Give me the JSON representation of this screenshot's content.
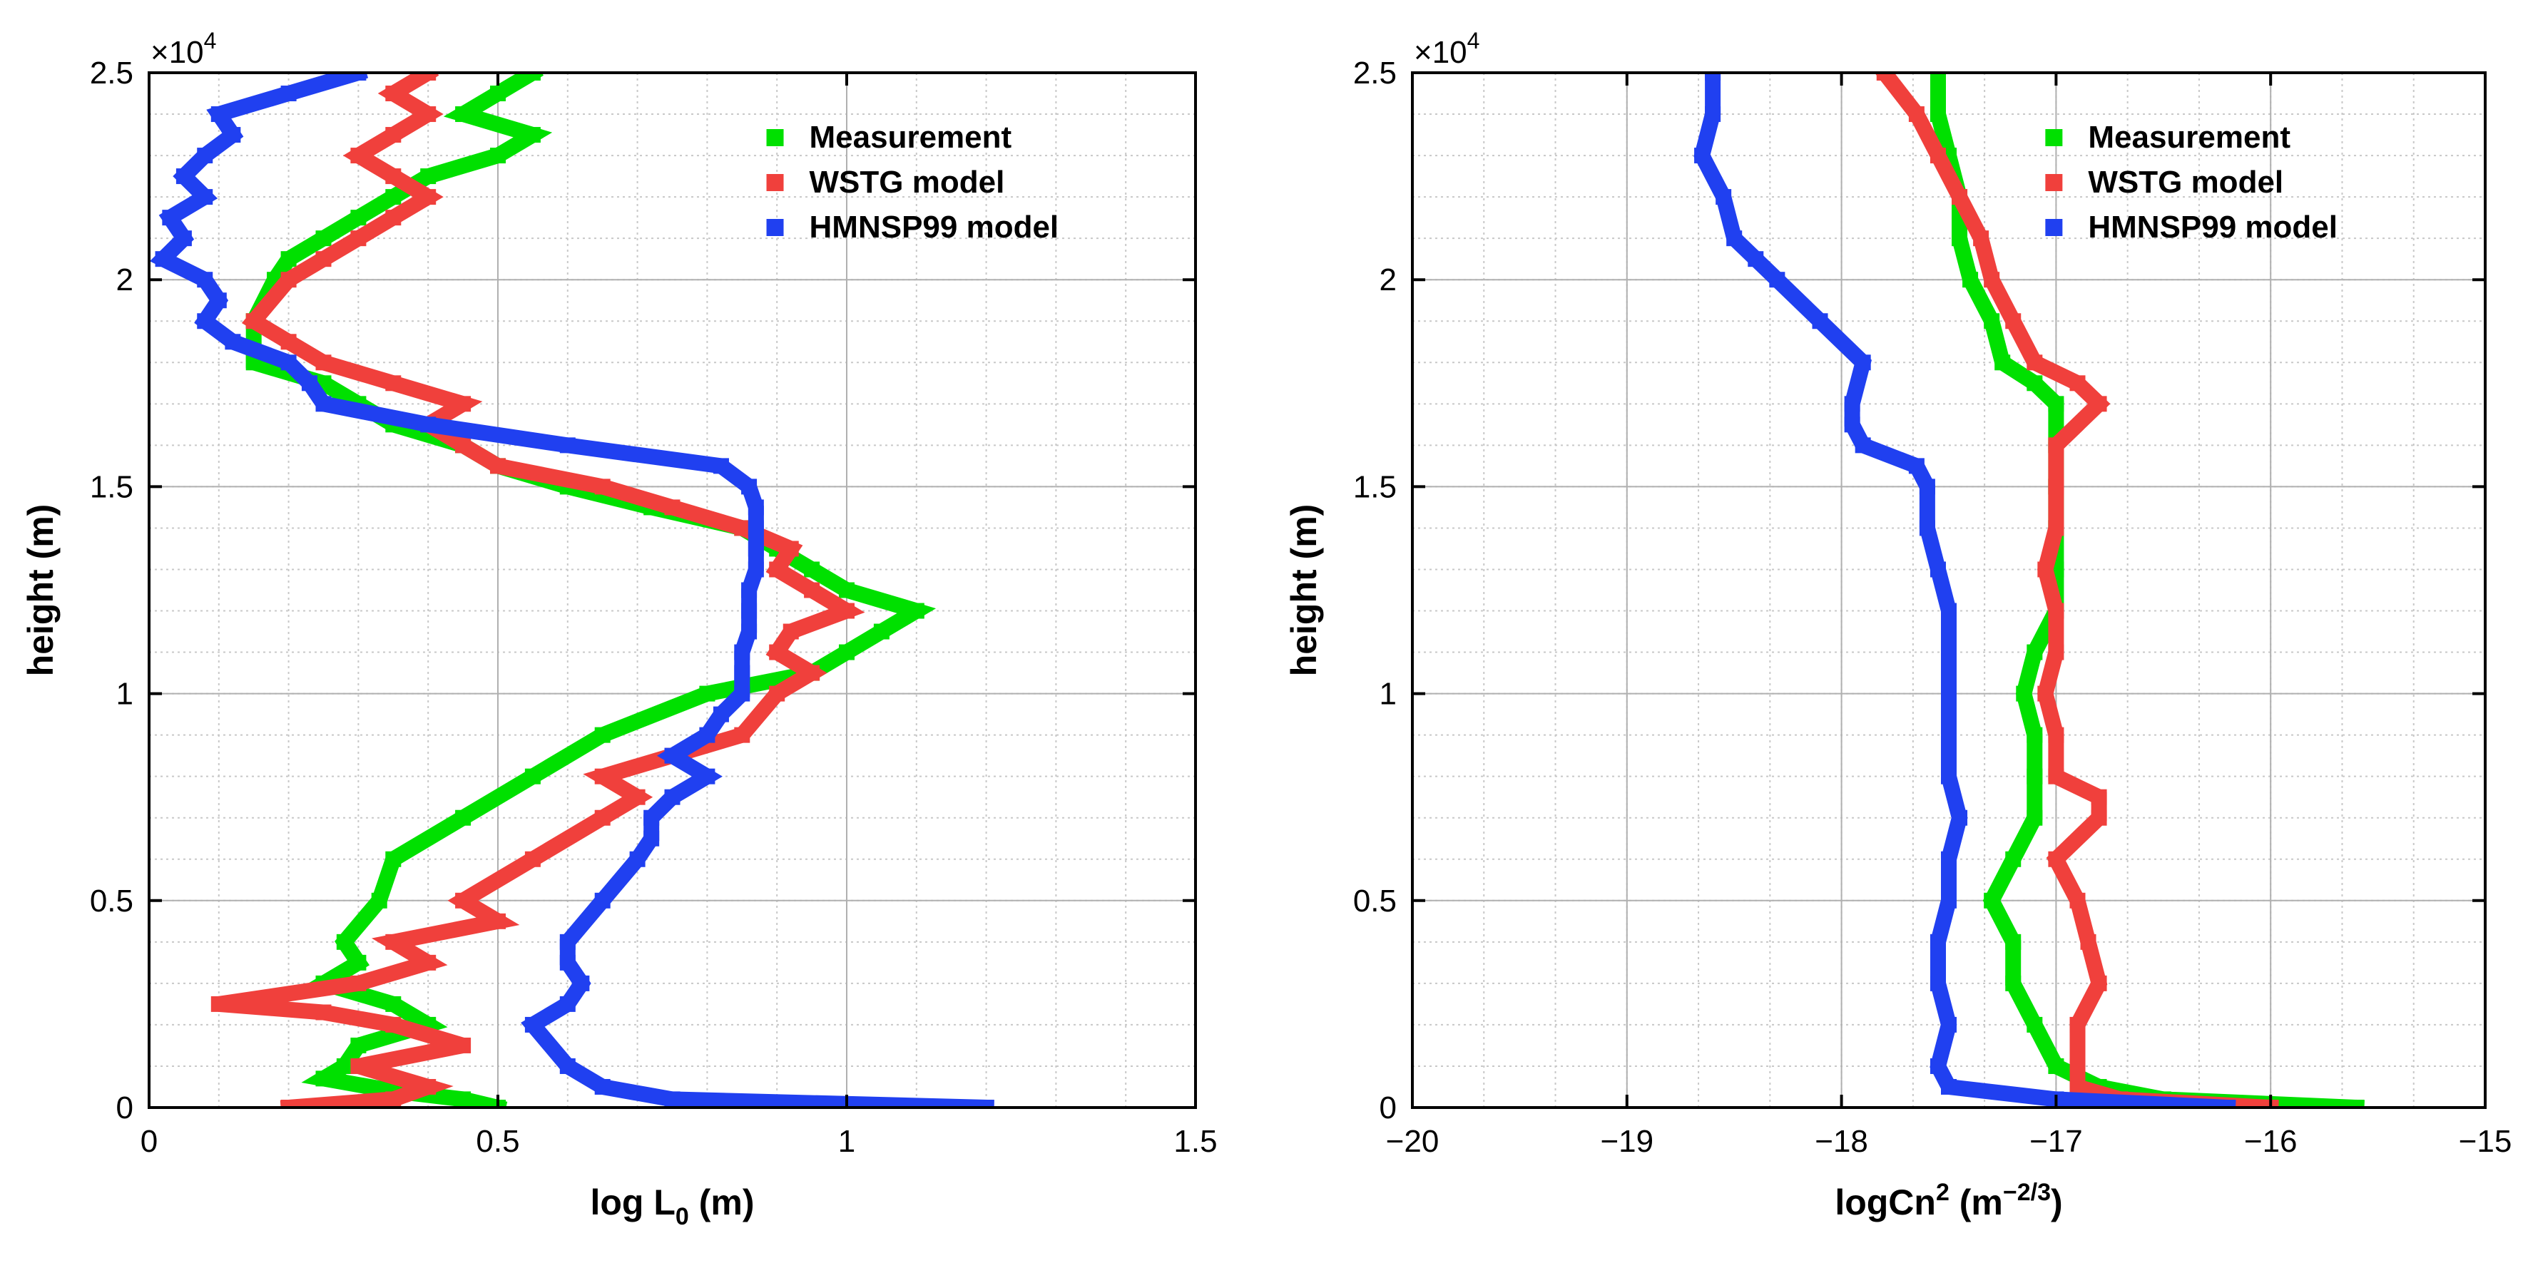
{
  "chart_data": [
    {
      "type": "scatter",
      "title": "",
      "xlabel": "log L",
      "xlabel_sub": "0",
      "xlabel_unit": " (m)",
      "ylabel": "height (m)",
      "exponent_base": "×10",
      "exponent_power": "4",
      "xlim": [
        0,
        1.5
      ],
      "ylim": [
        0,
        25000
      ],
      "xticks": [
        0,
        0.5,
        1,
        1.5
      ],
      "xtick_labels": [
        "0",
        "0.5",
        "1",
        "1.5"
      ],
      "yticks": [
        0,
        5000,
        10000,
        15000,
        20000,
        25000
      ],
      "ytick_labels": [
        "0",
        "0.5",
        "1",
        "1.5",
        "2",
        "2.5"
      ],
      "grid": true,
      "legend": "top-right",
      "series": [
        {
          "name": "Measurement",
          "color": "#00e000",
          "y": [
            0,
            200,
            400,
            700,
            1000,
            1500,
            2000,
            2500,
            3000,
            3500,
            4000,
            5000,
            6000,
            7000,
            8000,
            9000,
            10000,
            10500,
            11000,
            11500,
            12000,
            12500,
            13000,
            13500,
            14000,
            14500,
            15000,
            15500,
            16000,
            16500,
            17000,
            17500,
            18000,
            19000,
            20000,
            20500,
            21000,
            21500,
            22000,
            22500,
            23000,
            23500,
            24000,
            24500,
            25000
          ],
          "x": [
            0.5,
            0.45,
            0.35,
            0.25,
            0.28,
            0.3,
            0.4,
            0.35,
            0.25,
            0.3,
            0.28,
            0.33,
            0.35,
            0.45,
            0.55,
            0.65,
            0.8,
            0.95,
            1.0,
            1.05,
            1.1,
            1.0,
            0.95,
            0.9,
            0.85,
            0.72,
            0.6,
            0.5,
            0.45,
            0.35,
            0.3,
            0.25,
            0.15,
            0.15,
            0.18,
            0.2,
            0.25,
            0.3,
            0.35,
            0.4,
            0.5,
            0.55,
            0.45,
            0.5,
            0.55
          ]
        },
        {
          "name": "WSTG model",
          "color": "#f0403c",
          "y": [
            0,
            200,
            500,
            1000,
            1500,
            2000,
            2300,
            2500,
            3000,
            3500,
            4000,
            4500,
            5000,
            6000,
            7000,
            7500,
            8000,
            8500,
            9000,
            10000,
            10500,
            11000,
            11500,
            12000,
            12500,
            13000,
            13500,
            14000,
            14500,
            15000,
            15500,
            16000,
            16500,
            17000,
            17500,
            18000,
            18500,
            19000,
            20000,
            20500,
            21000,
            21500,
            22000,
            22500,
            23000,
            23500,
            24000,
            24500,
            25000
          ],
          "x": [
            0.2,
            0.35,
            0.4,
            0.3,
            0.45,
            0.35,
            0.25,
            0.1,
            0.3,
            0.4,
            0.35,
            0.5,
            0.45,
            0.55,
            0.65,
            0.7,
            0.65,
            0.75,
            0.85,
            0.9,
            0.95,
            0.9,
            0.92,
            1.0,
            0.95,
            0.9,
            0.92,
            0.85,
            0.75,
            0.65,
            0.5,
            0.45,
            0.4,
            0.45,
            0.35,
            0.25,
            0.2,
            0.15,
            0.2,
            0.25,
            0.3,
            0.35,
            0.4,
            0.35,
            0.3,
            0.35,
            0.4,
            0.35,
            0.4
          ]
        },
        {
          "name": "HMNSP99 model",
          "color": "#2040f0",
          "y": [
            0,
            200,
            500,
            1000,
            2000,
            2500,
            3000,
            3500,
            4000,
            5000,
            6000,
            6500,
            7000,
            7500,
            8000,
            8500,
            9000,
            9500,
            10000,
            10500,
            11000,
            11500,
            12000,
            12500,
            13000,
            13500,
            14000,
            14500,
            15000,
            15500,
            16000,
            16500,
            17000,
            17500,
            18000,
            18500,
            19000,
            19500,
            20000,
            20500,
            21000,
            21500,
            22000,
            22500,
            23000,
            23500,
            24000,
            24500,
            25000
          ],
          "x": [
            1.2,
            0.75,
            0.65,
            0.6,
            0.55,
            0.6,
            0.62,
            0.6,
            0.6,
            0.65,
            0.7,
            0.72,
            0.72,
            0.75,
            0.8,
            0.75,
            0.8,
            0.82,
            0.85,
            0.85,
            0.85,
            0.86,
            0.86,
            0.86,
            0.87,
            0.87,
            0.87,
            0.87,
            0.86,
            0.82,
            0.6,
            0.4,
            0.25,
            0.23,
            0.2,
            0.12,
            0.08,
            0.1,
            0.08,
            0.02,
            0.05,
            0.03,
            0.08,
            0.05,
            0.08,
            0.12,
            0.1,
            0.2,
            0.3
          ]
        }
      ]
    },
    {
      "type": "scatter",
      "title": "",
      "xlabel": "logCn",
      "xlabel_sup": "2",
      "xlabel_unit_prefix": " (m",
      "xlabel_unit_sup": "−2/3",
      "xlabel_unit_suffix": ")",
      "ylabel": "height (m)",
      "exponent_base": "×10",
      "exponent_power": "4",
      "xlim": [
        -20,
        -15
      ],
      "ylim": [
        0,
        25000
      ],
      "xticks": [
        -20,
        -19,
        -18,
        -17,
        -16,
        -15
      ],
      "xtick_labels": [
        "−20",
        "−19",
        "−18",
        "−17",
        "−16",
        "−15"
      ],
      "yticks": [
        0,
        5000,
        10000,
        15000,
        20000,
        25000
      ],
      "ytick_labels": [
        "0",
        "0.5",
        "1",
        "1.5",
        "2",
        "2.5"
      ],
      "grid": true,
      "legend": "top-right",
      "series": [
        {
          "name": "Measurement",
          "color": "#00e000",
          "y": [
            0,
            200,
            500,
            1000,
            2000,
            3000,
            4000,
            5000,
            6000,
            7000,
            8000,
            9000,
            10000,
            11000,
            12000,
            13000,
            14000,
            15000,
            16000,
            17000,
            17500,
            18000,
            19000,
            20000,
            21000,
            22000,
            23000,
            24000,
            25000
          ],
          "x": [
            -15.6,
            -16.5,
            -16.8,
            -17.0,
            -17.1,
            -17.2,
            -17.2,
            -17.3,
            -17.2,
            -17.1,
            -17.1,
            -17.1,
            -17.15,
            -17.1,
            -17.0,
            -17.0,
            -17.0,
            -17.0,
            -17.0,
            -17.0,
            -17.1,
            -17.25,
            -17.3,
            -17.4,
            -17.45,
            -17.45,
            -17.5,
            -17.55,
            -17.55
          ]
        },
        {
          "name": "WSTG model",
          "color": "#f0403c",
          "y": [
            0,
            200,
            500,
            1000,
            2000,
            3000,
            4000,
            5000,
            6000,
            7000,
            7500,
            8000,
            9000,
            10000,
            11000,
            12000,
            13000,
            14000,
            15000,
            16000,
            17000,
            17500,
            18000,
            19000,
            20000,
            21000,
            22000,
            23000,
            24000,
            25000
          ],
          "x": [
            -16.0,
            -16.7,
            -16.9,
            -16.9,
            -16.9,
            -16.8,
            -16.85,
            -16.9,
            -17.0,
            -16.8,
            -16.8,
            -17.0,
            -17.0,
            -17.05,
            -17.0,
            -17.0,
            -17.05,
            -17.0,
            -17.0,
            -17.0,
            -16.8,
            -16.9,
            -17.1,
            -17.2,
            -17.3,
            -17.35,
            -17.45,
            -17.55,
            -17.65,
            -17.8
          ]
        },
        {
          "name": "HMNSP99 model",
          "color": "#2040f0",
          "y": [
            0,
            200,
            500,
            1000,
            2000,
            3000,
            4000,
            5000,
            6000,
            7000,
            8000,
            9000,
            10000,
            11000,
            12000,
            13000,
            14000,
            15000,
            15500,
            16000,
            16500,
            17000,
            18000,
            19000,
            20000,
            20500,
            21000,
            22000,
            23000,
            24000,
            25000
          ],
          "x": [
            -16.2,
            -17.0,
            -17.5,
            -17.55,
            -17.5,
            -17.55,
            -17.55,
            -17.5,
            -17.5,
            -17.45,
            -17.5,
            -17.5,
            -17.5,
            -17.5,
            -17.5,
            -17.55,
            -17.6,
            -17.6,
            -17.65,
            -17.9,
            -17.95,
            -17.95,
            -17.9,
            -18.1,
            -18.3,
            -18.4,
            -18.5,
            -18.55,
            -18.65,
            -18.6,
            -18.6
          ]
        }
      ]
    }
  ]
}
